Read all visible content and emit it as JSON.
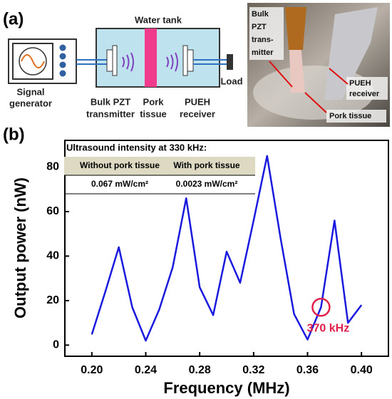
{
  "panels": {
    "a": "(a)",
    "b": "(b)"
  },
  "schematic": {
    "water_tank": "Water tank",
    "signal_generator": [
      "Signal",
      "generator"
    ],
    "transmitter": [
      "Bulk PZT",
      "transmitter"
    ],
    "tissue": [
      "Pork",
      "tissue"
    ],
    "receiver": [
      "PUEH",
      "receiver"
    ],
    "load": "Load"
  },
  "photo": {
    "transmitter": [
      "Bulk",
      "PZT",
      "trans-",
      "mitter"
    ],
    "receiver": [
      "PUEH",
      "receiver"
    ],
    "tissue": "Pork tissue"
  },
  "chart_data": {
    "type": "line",
    "xlabel": "Frequency (MHz)",
    "ylabel": "Output power (nW)",
    "x": [
      0.2,
      0.21,
      0.22,
      0.23,
      0.24,
      0.25,
      0.26,
      0.27,
      0.28,
      0.29,
      0.3,
      0.31,
      0.32,
      0.33,
      0.34,
      0.35,
      0.36,
      0.37,
      0.38,
      0.39,
      0.4
    ],
    "series": [
      {
        "color": "#1a1adf",
        "values": [
          4.8,
          24,
          44,
          17,
          2,
          16,
          35,
          66,
          26,
          13.5,
          42,
          28,
          56,
          85,
          48,
          14,
          2.5,
          17,
          56,
          10,
          18
        ]
      }
    ],
    "xlim": [
      0.18,
      0.42
    ],
    "ylim": [
      -5,
      92
    ],
    "xticks": [
      {
        "value": 0.2,
        "label": "0.20"
      },
      {
        "value": 0.24,
        "label": "0.24"
      },
      {
        "value": 0.28,
        "label": "0.28"
      },
      {
        "value": 0.32,
        "label": "0.32"
      },
      {
        "value": 0.36,
        "label": "0.36"
      },
      {
        "value": 0.4,
        "label": "0.40"
      }
    ],
    "yticks": [
      0,
      20,
      40,
      60,
      80
    ],
    "annotation": {
      "text": "370 kHz",
      "x": 0.37,
      "y": 17,
      "color": "#e0204a"
    },
    "inset_table": {
      "title": "Ultrasound intensity at 330 kHz:",
      "header": [
        "Without pork tissue",
        "With pork tissue"
      ],
      "row": [
        "0.067 mW/cm²",
        "0.0023 mW/cm²"
      ]
    }
  }
}
